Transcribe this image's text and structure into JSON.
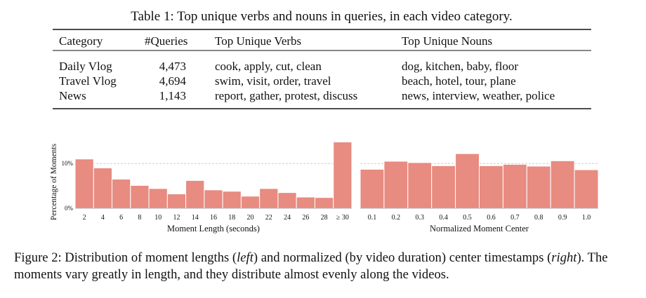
{
  "table": {
    "caption": "Table 1: Top unique verbs and nouns in queries, in each video category.",
    "header": [
      "Category",
      "#Queries",
      "Top Unique Verbs",
      "Top Unique Nouns"
    ],
    "rows": [
      [
        "Daily Vlog",
        "4,473",
        "cook, apply, cut, clean",
        "dog, kitchen, baby, floor"
      ],
      [
        "Travel Vlog",
        "4,694",
        "swim, visit, order, travel",
        "beach, hotel, tour, plane"
      ],
      [
        "News",
        "1,143",
        "report, gather, protest, discuss",
        "news, interview, weather, police"
      ]
    ]
  },
  "chart_data": [
    {
      "type": "bar",
      "color": "#e88b80",
      "x_label": "Moment Length (seconds)",
      "y_label": "Percentage of Moments",
      "categories": [
        "2",
        "4",
        "6",
        "8",
        "10",
        "12",
        "14",
        "16",
        "18",
        "20",
        "22",
        "24",
        "26",
        "28",
        "≥ 30"
      ],
      "values": [
        11.0,
        9.0,
        6.5,
        5.1,
        4.4,
        3.2,
        6.2,
        4.1,
        3.8,
        2.7,
        4.4,
        3.5,
        2.5,
        2.4,
        14.8
      ],
      "ylim": [
        0,
        15.5
      ],
      "yticks": [
        {
          "value": 0,
          "label": "0%"
        },
        {
          "value": 10,
          "label": "10%"
        }
      ],
      "grid": true
    },
    {
      "type": "bar",
      "color": "#e88b80",
      "x_label": "Normalized Moment Center",
      "categories": [
        "0.1",
        "0.2",
        "0.3",
        "0.4",
        "0.5",
        "0.6",
        "0.7",
        "0.8",
        "0.9",
        "1.0"
      ],
      "values": [
        8.7,
        10.5,
        10.2,
        9.5,
        12.2,
        9.5,
        9.8,
        9.4,
        10.6,
        8.6
      ],
      "ylim": [
        0,
        15.5
      ],
      "gridlines": [
        10
      ]
    }
  ],
  "figure_caption": [
    "Figure 2: Distribution of moment lengths (",
    "left",
    ") and normalized (by video duration) center timestamps (",
    "right",
    "). The moments vary greatly in length, and they distribute almost evenly along the videos."
  ]
}
